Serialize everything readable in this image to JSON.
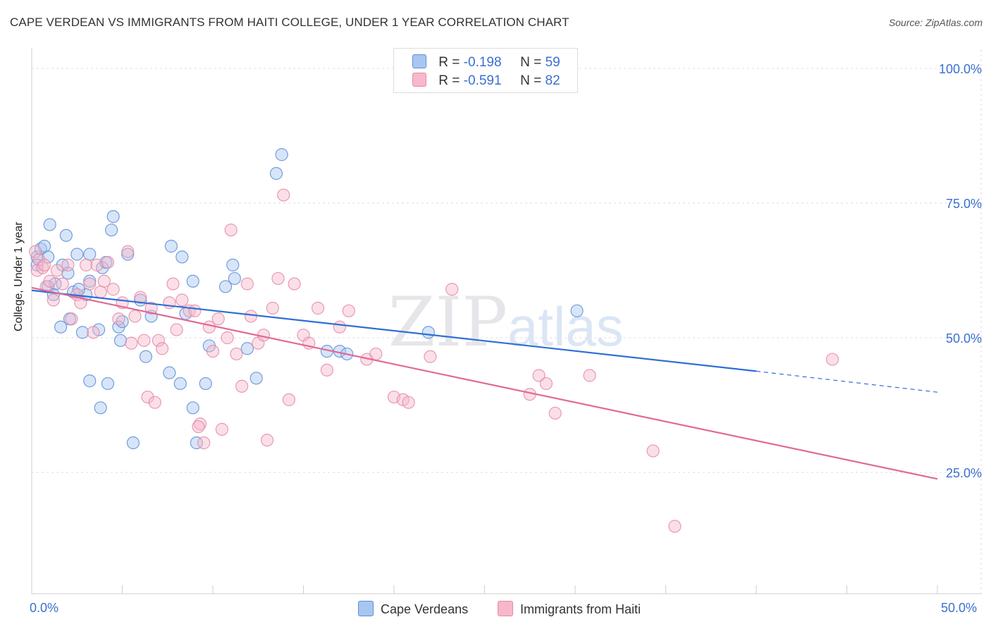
{
  "header": {
    "title": "CAPE VERDEAN VS IMMIGRANTS FROM HAITI COLLEGE, UNDER 1 YEAR CORRELATION CHART",
    "source": "Source: ZipAtlas.com"
  },
  "legend": {
    "rows": [
      {
        "r_label": "R =",
        "r_value": "-0.198",
        "n_label": "N =",
        "n_value": "59"
      },
      {
        "r_label": "R =",
        "r_value": "-0.591",
        "n_label": "N =",
        "n_value": "82"
      }
    ]
  },
  "colors": {
    "blue_fill": "#a9c6f0",
    "blue_stroke": "#5b8fd8",
    "blue_line": "#2f6fd6",
    "pink_fill": "#f6b8ca",
    "pink_stroke": "#e48aa8",
    "pink_line": "#e06a94",
    "tick_text": "#3b6fd1",
    "grid": "#dddddd"
  },
  "chart_data": {
    "type": "scatter",
    "title": "CAPE VERDEAN VS IMMIGRANTS FROM HAITI COLLEGE, UNDER 1 YEAR CORRELATION CHART",
    "xlabel": "",
    "ylabel": "College, Under 1 year",
    "xlim": [
      0,
      50
    ],
    "ylim": [
      2,
      102
    ],
    "x_tick_labels": [
      "0.0%",
      "50.0%"
    ],
    "y_ticks": [
      25,
      50,
      75,
      100
    ],
    "y_tick_labels": [
      "25.0%",
      "50.0%",
      "75.0%",
      "100.0%"
    ],
    "grid": true,
    "legend_position": "top-center",
    "watermark": "ZIPatlas",
    "series": [
      {
        "name": "Cape Verdeans",
        "R": -0.198,
        "N": 59,
        "trend": {
          "x0": 0,
          "y0": 58.8,
          "x1": 40,
          "y1": 43.8,
          "dashed_to_x": 50,
          "dashed_to_y": 39.9
        },
        "points": [
          [
            0.3,
            65.0
          ],
          [
            0.3,
            63.5
          ],
          [
            0.5,
            66.5
          ],
          [
            0.7,
            67.0
          ],
          [
            1.0,
            71.0
          ],
          [
            0.9,
            59.5
          ],
          [
            1.3,
            60.0
          ],
          [
            1.2,
            58.0
          ],
          [
            1.6,
            52.0
          ],
          [
            1.7,
            63.5
          ],
          [
            1.9,
            69.0
          ],
          [
            2.0,
            62.0
          ],
          [
            2.1,
            53.5
          ],
          [
            2.3,
            58.5
          ],
          [
            2.5,
            65.5
          ],
          [
            2.8,
            51.0
          ],
          [
            3.0,
            58.0
          ],
          [
            3.2,
            60.5
          ],
          [
            3.2,
            65.5
          ],
          [
            3.2,
            42.0
          ],
          [
            3.7,
            51.5
          ],
          [
            3.8,
            37.0
          ],
          [
            3.9,
            63.0
          ],
          [
            4.1,
            64.0
          ],
          [
            4.2,
            41.5
          ],
          [
            4.4,
            70.0
          ],
          [
            4.5,
            72.5
          ],
          [
            4.8,
            52.0
          ],
          [
            4.9,
            49.5
          ],
          [
            5.0,
            53.0
          ],
          [
            5.3,
            65.5
          ],
          [
            5.6,
            30.5
          ],
          [
            6.0,
            57.0
          ],
          [
            6.3,
            46.5
          ],
          [
            6.6,
            54.0
          ],
          [
            7.6,
            43.5
          ],
          [
            7.7,
            67.0
          ],
          [
            8.2,
            41.5
          ],
          [
            8.3,
            65.0
          ],
          [
            8.5,
            54.5
          ],
          [
            8.9,
            37.0
          ],
          [
            8.9,
            60.5
          ],
          [
            9.6,
            41.5
          ],
          [
            9.8,
            48.5
          ],
          [
            10.7,
            59.5
          ],
          [
            11.1,
            63.5
          ],
          [
            11.2,
            61.0
          ],
          [
            11.9,
            48.0
          ],
          [
            12.4,
            42.5
          ],
          [
            13.5,
            80.5
          ],
          [
            13.8,
            84.0
          ],
          [
            16.3,
            47.5
          ],
          [
            17.0,
            47.5
          ],
          [
            17.4,
            47.0
          ],
          [
            21.9,
            51.0
          ],
          [
            30.1,
            55.0
          ],
          [
            9.1,
            30.5
          ],
          [
            0.9,
            65.0
          ],
          [
            2.6,
            59.0
          ]
        ]
      },
      {
        "name": "Immigrants from Haiti",
        "R": -0.591,
        "N": 82,
        "trend": {
          "x0": 0,
          "y0": 59.3,
          "x1": 50,
          "y1": 23.8
        },
        "points": [
          [
            0.2,
            66.0
          ],
          [
            0.3,
            62.5
          ],
          [
            0.4,
            64.5
          ],
          [
            0.6,
            63.0
          ],
          [
            0.7,
            63.5
          ],
          [
            0.8,
            59.5
          ],
          [
            1.0,
            60.5
          ],
          [
            1.2,
            57.0
          ],
          [
            1.4,
            62.5
          ],
          [
            1.7,
            60.0
          ],
          [
            2.0,
            63.5
          ],
          [
            2.2,
            53.5
          ],
          [
            2.5,
            58.0
          ],
          [
            2.7,
            56.5
          ],
          [
            3.0,
            63.5
          ],
          [
            3.2,
            60.0
          ],
          [
            3.4,
            51.0
          ],
          [
            3.6,
            63.5
          ],
          [
            3.8,
            58.5
          ],
          [
            4.0,
            60.5
          ],
          [
            4.2,
            64.0
          ],
          [
            4.5,
            59.0
          ],
          [
            4.8,
            53.5
          ],
          [
            5.0,
            56.5
          ],
          [
            5.3,
            66.0
          ],
          [
            5.5,
            49.0
          ],
          [
            5.7,
            54.0
          ],
          [
            6.0,
            57.5
          ],
          [
            6.2,
            49.5
          ],
          [
            6.4,
            39.0
          ],
          [
            6.6,
            55.5
          ],
          [
            6.8,
            38.0
          ],
          [
            7.0,
            49.5
          ],
          [
            7.2,
            48.0
          ],
          [
            7.6,
            56.5
          ],
          [
            7.8,
            60.0
          ],
          [
            8.0,
            51.5
          ],
          [
            8.3,
            57.0
          ],
          [
            8.7,
            55.0
          ],
          [
            9.0,
            55.0
          ],
          [
            9.3,
            34.0
          ],
          [
            9.5,
            30.5
          ],
          [
            9.8,
            52.0
          ],
          [
            10.0,
            47.5
          ],
          [
            10.3,
            53.5
          ],
          [
            10.5,
            33.0
          ],
          [
            10.8,
            50.0
          ],
          [
            11.0,
            70.0
          ],
          [
            11.3,
            47.0
          ],
          [
            11.6,
            41.0
          ],
          [
            11.9,
            60.0
          ],
          [
            12.1,
            54.0
          ],
          [
            12.5,
            49.0
          ],
          [
            12.8,
            50.5
          ],
          [
            13.0,
            31.0
          ],
          [
            13.3,
            55.5
          ],
          [
            13.6,
            61.0
          ],
          [
            13.9,
            76.5
          ],
          [
            14.2,
            38.5
          ],
          [
            14.5,
            60.0
          ],
          [
            15.0,
            50.5
          ],
          [
            15.3,
            49.0
          ],
          [
            15.8,
            55.5
          ],
          [
            16.3,
            44.0
          ],
          [
            17.0,
            52.0
          ],
          [
            17.5,
            55.0
          ],
          [
            18.5,
            46.0
          ],
          [
            19.0,
            47.0
          ],
          [
            20.0,
            39.0
          ],
          [
            20.5,
            38.5
          ],
          [
            20.8,
            38.0
          ],
          [
            22.0,
            46.5
          ],
          [
            23.2,
            59.0
          ],
          [
            27.5,
            39.5
          ],
          [
            28.0,
            43.0
          ],
          [
            28.4,
            41.5
          ],
          [
            28.9,
            36.0
          ],
          [
            30.8,
            43.0
          ],
          [
            34.3,
            29.0
          ],
          [
            35.5,
            15.0
          ],
          [
            44.2,
            46.0
          ],
          [
            9.2,
            33.5
          ]
        ]
      }
    ]
  },
  "bottom_legend": {
    "items": [
      {
        "label": "Cape Verdeans"
      },
      {
        "label": "Immigrants from Haiti"
      }
    ]
  }
}
